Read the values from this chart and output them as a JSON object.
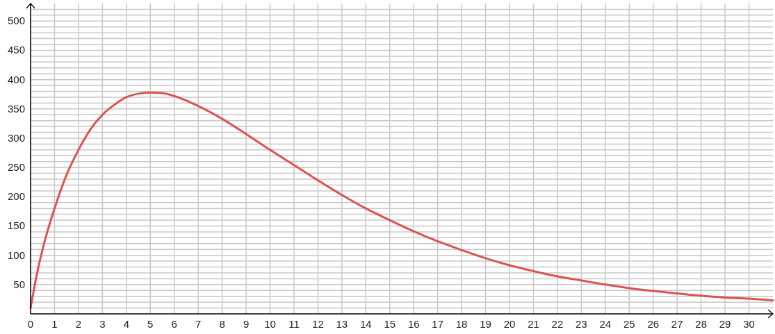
{
  "chart_data": {
    "type": "line",
    "x": [
      0,
      0.25,
      0.5,
      1,
      1.5,
      2,
      2.5,
      3,
      3.5,
      4,
      4.5,
      5,
      5.5,
      6,
      7,
      8,
      9,
      10,
      11,
      12,
      13,
      14,
      15,
      16,
      17,
      18,
      19,
      20,
      21,
      22,
      23,
      24,
      25,
      26,
      27,
      28,
      29,
      30,
      31
    ],
    "series": [
      {
        "color": "#dc5350",
        "values": [
          10,
          65,
          110,
          180,
          237,
          280,
          315,
          340,
          357,
          370,
          376,
          378,
          377,
          372,
          355,
          333,
          307,
          280,
          254,
          228,
          203,
          180,
          160,
          141,
          124,
          109,
          95,
          83,
          73,
          64,
          57,
          50,
          44,
          39,
          35,
          31,
          28,
          26,
          23
        ]
      }
    ],
    "xlim": [
      0,
      31
    ],
    "ylim": [
      0,
      530
    ],
    "xticks": [
      0,
      1,
      2,
      3,
      4,
      5,
      6,
      7,
      8,
      9,
      10,
      11,
      12,
      13,
      14,
      15,
      16,
      17,
      18,
      19,
      20,
      21,
      22,
      23,
      24,
      25,
      26,
      27,
      28,
      29,
      30
    ],
    "yticks": [
      {
        "value": 10,
        "label": null
      },
      {
        "value": 20,
        "label": null
      },
      {
        "value": 30,
        "label": null
      },
      {
        "value": 40,
        "label": null
      },
      50,
      {
        "value": 60,
        "label": null
      },
      {
        "value": 70,
        "label": null
      },
      {
        "value": 80,
        "label": null
      },
      {
        "value": 90,
        "label": null
      },
      100,
      {
        "value": 110,
        "label": null
      },
      {
        "value": 120,
        "label": null
      },
      {
        "value": 130,
        "label": null
      },
      {
        "value": 140,
        "label": null
      },
      150,
      {
        "value": 160,
        "label": null
      },
      {
        "value": 170,
        "label": null
      },
      {
        "value": 180,
        "label": null
      },
      {
        "value": 190,
        "label": null
      },
      200,
      {
        "value": 210,
        "label": null
      },
      {
        "value": 220,
        "label": null
      },
      {
        "value": 230,
        "label": null
      },
      {
        "value": 240,
        "label": null
      },
      250,
      {
        "value": 260,
        "label": null
      },
      {
        "value": 270,
        "label": null
      },
      {
        "value": 280,
        "label": null
      },
      {
        "value": 290,
        "label": null
      },
      300,
      {
        "value": 310,
        "label": null
      },
      {
        "value": 320,
        "label": null
      },
      {
        "value": 330,
        "label": null
      },
      {
        "value": 340,
        "label": null
      },
      350,
      {
        "value": 360,
        "label": null
      },
      {
        "value": 370,
        "label": null
      },
      {
        "value": 380,
        "label": null
      },
      {
        "value": 390,
        "label": null
      },
      400,
      {
        "value": 410,
        "label": null
      },
      {
        "value": 420,
        "label": null
      },
      {
        "value": 430,
        "label": null
      },
      {
        "value": 440,
        "label": null
      },
      450,
      {
        "value": 460,
        "label": null
      },
      {
        "value": 470,
        "label": null
      },
      {
        "value": 480,
        "label": null
      },
      {
        "value": 490,
        "label": null
      },
      500,
      {
        "value": 510,
        "label": null
      },
      {
        "value": 520,
        "label": null
      }
    ],
    "grid": true,
    "marker": "none",
    "line_style": "solid"
  }
}
